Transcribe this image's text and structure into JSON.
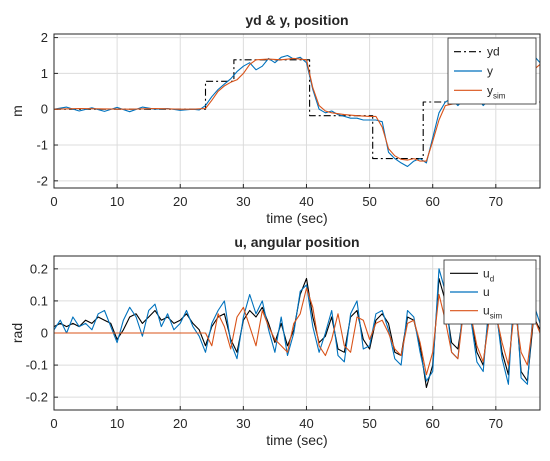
{
  "chart_data": [
    {
      "type": "line",
      "title": "yd & y, position",
      "xlabel": "time (sec)",
      "ylabel": "m",
      "xlim": [
        0,
        77
      ],
      "ylim": [
        -2.2,
        2.1
      ],
      "xticks": [
        "0",
        "10",
        "20",
        "30",
        "40",
        "50",
        "60",
        "70"
      ],
      "yticks": [
        "2",
        "1",
        "0",
        "-1",
        "-2"
      ],
      "grid": true,
      "legend_position": "top-right",
      "series": [
        {
          "name": "yd",
          "legend_main": "yd",
          "legend_sub": "",
          "color": "#000000",
          "dash": "dash-dot",
          "x": [
            0,
            24,
            24,
            28.5,
            28.5,
            40.5,
            40.5,
            50.5,
            50.5,
            58.5,
            58.5,
            77
          ],
          "y": [
            0,
            0,
            0.78,
            0.78,
            1.38,
            1.38,
            -0.18,
            -0.18,
            -1.38,
            -1.38,
            0.2,
            0.2
          ]
        },
        {
          "name": "y",
          "legend_main": "y",
          "legend_sub": "",
          "color": "#0072bd",
          "dash": "solid",
          "x": [
            0,
            2,
            4,
            6,
            8,
            10,
            12,
            14,
            16,
            18,
            20,
            22,
            23,
            24,
            25,
            26,
            27,
            28,
            29,
            30,
            31,
            32,
            33,
            34,
            35,
            36,
            37,
            38,
            39,
            40,
            41,
            42,
            43,
            44,
            45,
            46,
            47,
            48,
            49,
            50,
            51,
            52,
            53,
            54,
            55,
            56,
            57,
            58,
            59,
            60,
            61,
            62,
            63,
            64,
            65,
            66,
            67,
            68,
            69,
            70,
            71,
            72,
            73,
            74,
            75,
            76,
            77
          ],
          "y": [
            0,
            0.06,
            -0.05,
            0.04,
            -0.06,
            0.05,
            -0.07,
            0.06,
            0.0,
            0.02,
            -0.03,
            0.0,
            -0.02,
            0.1,
            0.35,
            0.55,
            0.7,
            0.85,
            1.05,
            1.2,
            1.3,
            1.1,
            1.2,
            1.42,
            1.3,
            1.45,
            1.5,
            1.4,
            1.45,
            1.3,
            0.55,
            0.0,
            -0.1,
            -0.05,
            -0.15,
            -0.2,
            -0.25,
            -0.25,
            -0.3,
            -0.3,
            -0.3,
            -0.35,
            -1.2,
            -1.38,
            -1.5,
            -1.6,
            -1.45,
            -1.38,
            -1.5,
            -0.8,
            -0.1,
            0.2,
            0.3,
            0.1,
            0.3,
            0.2,
            0.35,
            0.1,
            0.3,
            0.35,
            0.2,
            0.35,
            0.2,
            0.3,
            0.4,
            1.5,
            1.3
          ]
        },
        {
          "name": "ysim",
          "legend_main": "y",
          "legend_sub": "sim",
          "color": "#d95319",
          "dash": "solid",
          "x": [
            0,
            4,
            8,
            12,
            16,
            20,
            22,
            24,
            25,
            26,
            27,
            28,
            29,
            30,
            31,
            32,
            34,
            36,
            38,
            40,
            41,
            42,
            43,
            44,
            46,
            48,
            50,
            51,
            52,
            53,
            54,
            55,
            56,
            57,
            58,
            59,
            60,
            61,
            62,
            64,
            66,
            68,
            70,
            72,
            74,
            76,
            77
          ],
          "y": [
            0,
            0.02,
            0.01,
            0.0,
            0.02,
            0.0,
            0.0,
            0.02,
            0.25,
            0.5,
            0.65,
            0.75,
            0.82,
            1.0,
            1.25,
            1.38,
            1.4,
            1.38,
            1.42,
            1.38,
            0.6,
            0.1,
            -0.05,
            -0.1,
            -0.15,
            -0.18,
            -0.2,
            -0.2,
            -0.5,
            -1.1,
            -1.3,
            -1.4,
            -1.42,
            -1.38,
            -1.45,
            -1.45,
            -0.9,
            -0.3,
            0.1,
            0.18,
            0.22,
            0.2,
            0.22,
            0.2,
            0.22,
            1.1,
            1.25
          ]
        }
      ]
    },
    {
      "type": "line",
      "title": "u, angular position",
      "xlabel": "time (sec)",
      "ylabel": "rad",
      "xlim": [
        0,
        77
      ],
      "ylim": [
        -0.24,
        0.24
      ],
      "xticks": [
        "0",
        "10",
        "20",
        "30",
        "40",
        "50",
        "60",
        "70"
      ],
      "yticks": [
        "0.2",
        "0.1",
        "0",
        "-0.1",
        "-0.2"
      ],
      "grid": true,
      "legend_position": "top-right",
      "series": [
        {
          "name": "ud",
          "legend_main": "u",
          "legend_sub": "d",
          "color": "#000000",
          "dash": "solid",
          "x": [
            0,
            1,
            2,
            3,
            4,
            5,
            6,
            7,
            8,
            9,
            10,
            11,
            12,
            13,
            14,
            15,
            16,
            17,
            18,
            19,
            20,
            21,
            22,
            23,
            24,
            25,
            26,
            27,
            28,
            29,
            30,
            31,
            32,
            33,
            34,
            35,
            36,
            37,
            38,
            39,
            40,
            41,
            42,
            43,
            44,
            45,
            46,
            47,
            48,
            49,
            50,
            51,
            52,
            53,
            54,
            55,
            56,
            57,
            58,
            59,
            60,
            61,
            62,
            63,
            64,
            65,
            66,
            67,
            68,
            69,
            70,
            71,
            72,
            73,
            74,
            75,
            76,
            77
          ],
          "y": [
            0.02,
            0.03,
            0.02,
            0.03,
            0.02,
            0.04,
            0.03,
            0.05,
            0.04,
            0.03,
            -0.02,
            0.01,
            0.05,
            0.06,
            0.03,
            0.05,
            0.07,
            0.04,
            0.05,
            0.03,
            0.04,
            0.06,
            0.03,
            0.01,
            -0.04,
            0.02,
            0.05,
            0.06,
            -0.02,
            -0.06,
            0.04,
            0.07,
            0.05,
            0.08,
            0.03,
            -0.03,
            0.03,
            -0.04,
            0.01,
            0.12,
            0.17,
            0.05,
            -0.03,
            -0.01,
            0.05,
            -0.05,
            -0.06,
            0.05,
            0.07,
            -0.02,
            -0.05,
            0.04,
            0.06,
            0.03,
            -0.06,
            -0.07,
            0.05,
            0.04,
            -0.04,
            -0.17,
            -0.1,
            0.17,
            0.1,
            -0.03,
            -0.05,
            0.08,
            0.06,
            -0.06,
            -0.1,
            0.08,
            0.07,
            -0.06,
            -0.13,
            0.13,
            -0.12,
            -0.15,
            0.05,
            0.01
          ]
        },
        {
          "name": "u",
          "legend_main": "u",
          "legend_sub": "",
          "color": "#0072bd",
          "dash": "solid",
          "x": [
            0,
            1,
            2,
            3,
            4,
            5,
            6,
            7,
            8,
            9,
            10,
            11,
            12,
            13,
            14,
            15,
            16,
            17,
            18,
            19,
            20,
            21,
            22,
            23,
            24,
            25,
            26,
            27,
            28,
            29,
            30,
            31,
            32,
            33,
            34,
            35,
            36,
            37,
            38,
            39,
            40,
            41,
            42,
            43,
            44,
            45,
            46,
            47,
            48,
            49,
            50,
            51,
            52,
            53,
            54,
            55,
            56,
            57,
            58,
            59,
            60,
            61,
            62,
            63,
            64,
            65,
            66,
            67,
            68,
            69,
            70,
            71,
            72,
            73,
            74,
            75,
            76,
            77
          ],
          "y": [
            0.01,
            0.04,
            0.0,
            0.05,
            0.02,
            0.03,
            0.01,
            0.06,
            0.07,
            0.02,
            -0.03,
            0.04,
            0.08,
            0.05,
            -0.01,
            0.07,
            0.09,
            0.02,
            0.06,
            0.01,
            0.03,
            0.07,
            0.02,
            -0.01,
            -0.06,
            0.03,
            0.07,
            0.1,
            -0.03,
            -0.08,
            0.05,
            0.12,
            0.06,
            0.1,
            0.01,
            -0.06,
            0.05,
            -0.07,
            0.0,
            0.13,
            0.15,
            0.02,
            -0.06,
            0.0,
            0.07,
            -0.07,
            -0.09,
            0.06,
            0.1,
            -0.05,
            -0.04,
            0.06,
            0.07,
            0.01,
            -0.08,
            -0.1,
            0.07,
            0.05,
            -0.06,
            -0.15,
            -0.12,
            0.2,
            0.13,
            -0.06,
            -0.08,
            0.12,
            0.05,
            -0.09,
            -0.12,
            0.11,
            0.08,
            -0.08,
            -0.16,
            0.17,
            -0.14,
            -0.16,
            0.09,
            0.03
          ]
        },
        {
          "name": "usim",
          "legend_main": "u",
          "legend_sub": "sim",
          "color": "#d95319",
          "dash": "solid",
          "x": [
            0,
            5,
            10,
            15,
            20,
            22,
            24,
            25,
            26,
            27,
            28,
            29,
            30,
            31,
            32,
            33,
            34,
            35,
            36,
            37,
            38,
            39,
            40,
            41,
            42,
            43,
            44,
            45,
            46,
            47,
            48,
            49,
            50,
            51,
            52,
            53,
            54,
            55,
            56,
            57,
            58,
            59,
            60,
            61,
            62,
            63,
            64,
            65,
            66,
            67,
            68,
            69,
            70,
            71,
            72,
            73,
            74,
            75,
            76,
            77
          ],
          "y": [
            0,
            0.0,
            0.0,
            0.0,
            0.0,
            0.0,
            0.0,
            -0.04,
            0.06,
            0.02,
            -0.05,
            0.05,
            0.08,
            0.02,
            -0.04,
            0.07,
            0.02,
            -0.02,
            -0.04,
            -0.06,
            0.03,
            0.06,
            0.14,
            0.08,
            -0.04,
            -0.07,
            -0.02,
            0.06,
            -0.04,
            -0.06,
            0.05,
            0.04,
            -0.02,
            0.03,
            0.04,
            0.0,
            -0.05,
            -0.07,
            0.03,
            0.04,
            -0.03,
            -0.13,
            -0.06,
            0.12,
            0.04,
            -0.06,
            -0.08,
            0.09,
            0.06,
            -0.04,
            -0.09,
            0.05,
            0.06,
            -0.03,
            -0.1,
            0.08,
            -0.06,
            -0.1,
            0.05,
            0.0
          ]
        }
      ]
    }
  ]
}
